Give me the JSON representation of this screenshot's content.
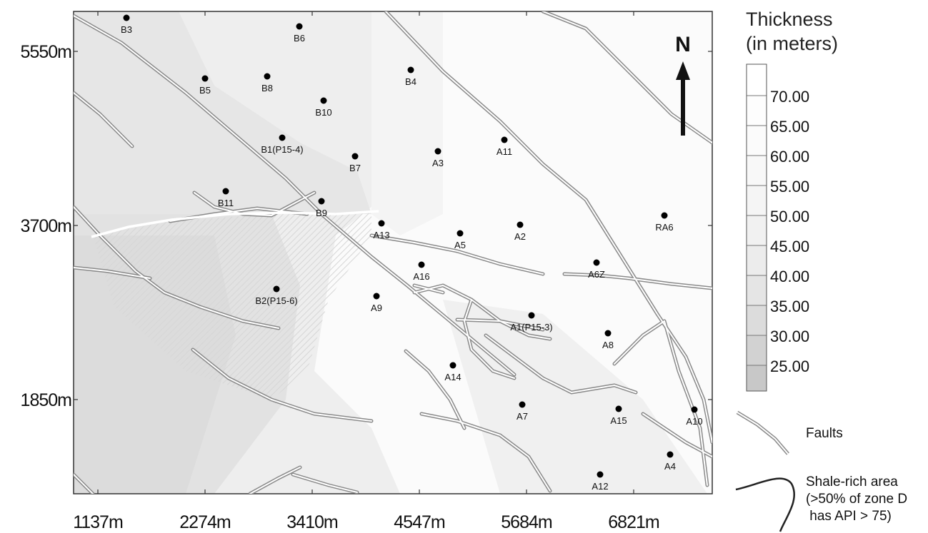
{
  "legend": {
    "title_line1": "Thickness",
    "title_line2": "(in meters)",
    "scale_values": [
      "70.00",
      "65.00",
      "60.00",
      "55.00",
      "50.00",
      "45.00",
      "40.00",
      "35.00",
      "30.00",
      "25.00"
    ],
    "faults_label": "Faults",
    "shale_line1": "Shale-rich area",
    "shale_line2": "(>50% of zone D",
    "shale_line3": " has API > 75)"
  },
  "north_arrow": {
    "label": "N"
  },
  "axes": {
    "x_ticks": [
      "1137m",
      "2274m",
      "3410m",
      "4547m",
      "5684m",
      "6821m"
    ],
    "y_ticks": [
      "5550m",
      "3700m",
      "1850m"
    ]
  },
  "wells": [
    {
      "name": "B3"
    },
    {
      "name": "B6"
    },
    {
      "name": "B5"
    },
    {
      "name": "B8"
    },
    {
      "name": "B4"
    },
    {
      "name": "B10"
    },
    {
      "name": "B1(P15-4)"
    },
    {
      "name": "A11"
    },
    {
      "name": "A3"
    },
    {
      "name": "B7"
    },
    {
      "name": "B11"
    },
    {
      "name": "B9"
    },
    {
      "name": "RA6"
    },
    {
      "name": "A13"
    },
    {
      "name": "A2"
    },
    {
      "name": "A5"
    },
    {
      "name": "A6Z"
    },
    {
      "name": "A16"
    },
    {
      "name": "B2(P15-6)"
    },
    {
      "name": "A9"
    },
    {
      "name": "A1(P15-3)"
    },
    {
      "name": "A8"
    },
    {
      "name": "A14"
    },
    {
      "name": "A7"
    },
    {
      "name": "A15"
    },
    {
      "name": "A10"
    },
    {
      "name": "A4"
    },
    {
      "name": "A12"
    }
  ],
  "colors": {
    "fault": "#8a8a8a",
    "well": "#000000",
    "shale_boundary": "#ffffff"
  }
}
